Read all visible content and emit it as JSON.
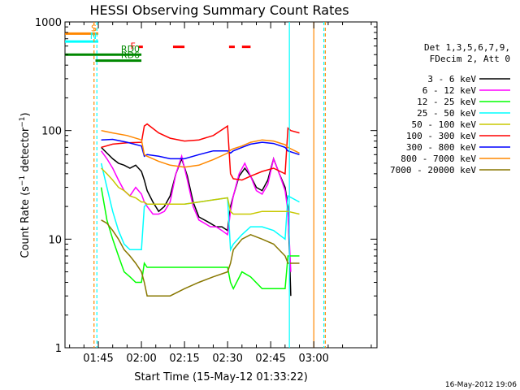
{
  "chart_data": {
    "type": "line",
    "title": "HESSI Observing Summary Count Rates",
    "xlabel": "Start Time (15-May-12 01:33:22)",
    "ylabel": "Count Rate (s⁻¹ detector⁻¹)",
    "ylabel_parts": {
      "main": "Count Rate (s",
      "sup1": "−1",
      "mid": " detector",
      "sup2": "−1",
      "end": ")"
    },
    "yscale": "log",
    "ylim": [
      1,
      1000
    ],
    "xlim_minutes": [
      93.4,
      202.0
    ],
    "x_ticks": [
      {
        "label": "01:45",
        "value": 105
      },
      {
        "label": "02:00",
        "value": 120
      },
      {
        "label": "02:15",
        "value": 135
      },
      {
        "label": "02:30",
        "value": 150
      },
      {
        "label": "02:45",
        "value": 165
      },
      {
        "label": "03:00",
        "value": 180
      }
    ],
    "y_ticks": [
      {
        "label": "1",
        "value": 1
      },
      {
        "label": "10",
        "value": 10
      },
      {
        "label": "100",
        "value": 100
      },
      {
        "label": "1000",
        "value": 1000
      }
    ],
    "legend_header": [
      "Det 1,3,5,6,7,9,",
      "FDecim 2, Att 0"
    ],
    "legend_position": "right",
    "timestamp": "16-May-2012 19:06",
    "series": [
      {
        "name": "3 - 6 keV",
        "color": "#000000",
        "x": [
          106,
          108,
          110,
          112,
          114,
          116,
          118,
          120,
          121,
          122,
          124,
          126,
          128,
          130,
          132,
          134,
          136,
          138,
          140,
          142,
          144,
          146,
          148,
          150,
          151,
          152,
          154,
          156,
          158,
          160,
          162,
          164,
          166,
          168,
          170,
          171,
          172
        ],
        "y": [
          70,
          62,
          55,
          50,
          48,
          45,
          48,
          42,
          35,
          28,
          22,
          18,
          20,
          25,
          40,
          55,
          38,
          22,
          16,
          15,
          14,
          13,
          13,
          12,
          20,
          25,
          38,
          45,
          38,
          30,
          28,
          35,
          55,
          40,
          30,
          20,
          3
        ]
      },
      {
        "name": "6 - 12 keV",
        "color": "#ff00ff",
        "x": [
          106,
          108,
          110,
          112,
          114,
          116,
          118,
          120,
          121,
          122,
          124,
          126,
          128,
          130,
          132,
          134,
          136,
          138,
          140,
          142,
          144,
          146,
          148,
          150,
          151,
          152,
          154,
          156,
          158,
          160,
          162,
          164,
          166,
          168,
          170,
          171,
          172
        ],
        "y": [
          65,
          55,
          45,
          35,
          28,
          25,
          30,
          26,
          22,
          20,
          17,
          17,
          18,
          22,
          40,
          58,
          35,
          20,
          15,
          14,
          13,
          13,
          12,
          11,
          18,
          25,
          40,
          50,
          38,
          28,
          26,
          32,
          55,
          40,
          28,
          18,
          5
        ]
      },
      {
        "name": "12 - 25 keV",
        "color": "#00ff00",
        "x": [
          106,
          108,
          110,
          112,
          114,
          116,
          118,
          120,
          121,
          122,
          126,
          130,
          135,
          140,
          145,
          150,
          151,
          152,
          155,
          158,
          162,
          166,
          170,
          171,
          175
        ],
        "y": [
          30,
          15,
          10,
          7,
          5,
          4.5,
          4,
          4,
          6,
          5.5,
          5.5,
          5.5,
          5.5,
          5.5,
          5.5,
          5.5,
          4,
          3.5,
          5,
          4.5,
          3.5,
          3.5,
          3.5,
          7,
          7
        ]
      },
      {
        "name": "25 - 50 keV",
        "color": "#00ffff",
        "x": [
          106,
          108,
          110,
          112,
          114,
          116,
          118,
          120,
          121,
          122,
          126,
          130,
          135,
          140,
          145,
          150,
          151,
          152,
          155,
          158,
          162,
          166,
          170,
          171,
          175
        ],
        "y": [
          50,
          30,
          18,
          12,
          9,
          8,
          8,
          8,
          20,
          21,
          21,
          21,
          21,
          22,
          23,
          24,
          8,
          9,
          11,
          13,
          13,
          12,
          10,
          25,
          22
        ]
      },
      {
        "name": "50 - 100 keV",
        "color": "#c8c800",
        "x": [
          106,
          108,
          110,
          112,
          114,
          116,
          118,
          120,
          121,
          122,
          126,
          130,
          135,
          140,
          145,
          150,
          151,
          152,
          155,
          158,
          162,
          166,
          170,
          171,
          175
        ],
        "y": [
          45,
          40,
          35,
          30,
          28,
          25,
          24,
          22,
          22,
          21,
          21,
          21,
          21,
          22,
          23,
          24,
          18,
          17,
          17,
          17,
          18,
          18,
          18,
          18,
          17
        ]
      },
      {
        "name": "100 - 300 keV",
        "color": "#ff0000",
        "x": [
          106,
          110,
          115,
          120,
          121,
          122,
          126,
          130,
          135,
          140,
          145,
          150,
          151,
          152,
          155,
          158,
          162,
          166,
          170,
          171,
          172,
          175
        ],
        "y": [
          70,
          75,
          77,
          78,
          110,
          115,
          95,
          85,
          80,
          82,
          90,
          110,
          40,
          36,
          35,
          38,
          42,
          45,
          40,
          105,
          100,
          95
        ]
      },
      {
        "name": "300 - 800 keV",
        "color": "#0000ff",
        "x": [
          106,
          110,
          115,
          120,
          121,
          122,
          126,
          130,
          135,
          140,
          145,
          150,
          151,
          152,
          155,
          158,
          162,
          166,
          170,
          171,
          175
        ],
        "y": [
          82,
          83,
          78,
          72,
          58,
          60,
          58,
          55,
          55,
          60,
          65,
          65,
          62,
          65,
          70,
          75,
          78,
          76,
          70,
          65,
          60
        ]
      },
      {
        "name": "800 - 7000 keV",
        "color": "#ff8800",
        "x": [
          106,
          110,
          115,
          120,
          121,
          122,
          126,
          130,
          135,
          140,
          145,
          150,
          151,
          152,
          155,
          158,
          162,
          166,
          170,
          171,
          175
        ],
        "y": [
          100,
          95,
          90,
          82,
          60,
          58,
          52,
          48,
          46,
          48,
          54,
          62,
          66,
          68,
          72,
          78,
          82,
          80,
          74,
          70,
          62
        ]
      },
      {
        "name": "7000 - 20000 keV",
        "color": "#887700",
        "x": [
          106,
          108,
          110,
          112,
          114,
          116,
          118,
          120,
          121,
          122,
          126,
          130,
          135,
          140,
          145,
          150,
          151,
          152,
          155,
          158,
          162,
          166,
          170,
          171,
          175
        ],
        "y": [
          15,
          14,
          12,
          10,
          8,
          7,
          6,
          5,
          4,
          3,
          3,
          3,
          3.5,
          4,
          4.5,
          5,
          6,
          8,
          10,
          11,
          10,
          9,
          7,
          6,
          6
        ]
      }
    ],
    "attenuator_states": [
      {
        "label": "S",
        "color": "#ff8800",
        "x_start": 93.4,
        "x_end": 105,
        "y": 780
      },
      {
        "label": "N",
        "color": "#00ffff",
        "x_start": 93.4,
        "x_end": 105,
        "y": 660
      },
      {
        "label": "F",
        "color": "#ff0000",
        "segments": [
          [
            119,
            120.5
          ],
          [
            131,
            135
          ],
          [
            150.5,
            152.5
          ],
          [
            155,
            158
          ]
        ],
        "y": 590
      },
      {
        "label": "RD0",
        "color": "#008800",
        "x_start": 93.4,
        "x_end": 120,
        "y": 500
      },
      {
        "label": "RD6",
        "color": "#008800",
        "x_start": 104,
        "x_end": 120,
        "y": 440
      }
    ],
    "vertical_markers": [
      {
        "x": 103.5,
        "color": "#ff8800",
        "style": "dashed"
      },
      {
        "x": 104.5,
        "color": "#00ffff",
        "style": "dashed"
      },
      {
        "x": 171.5,
        "color": "#00ffff",
        "style": "solid"
      },
      {
        "x": 180,
        "color": "#ff8800",
        "style": "solid"
      },
      {
        "x": 183.5,
        "color": "#00ffff",
        "style": "dashed"
      },
      {
        "x": 184,
        "color": "#ff8800",
        "style": "dashed"
      }
    ]
  }
}
